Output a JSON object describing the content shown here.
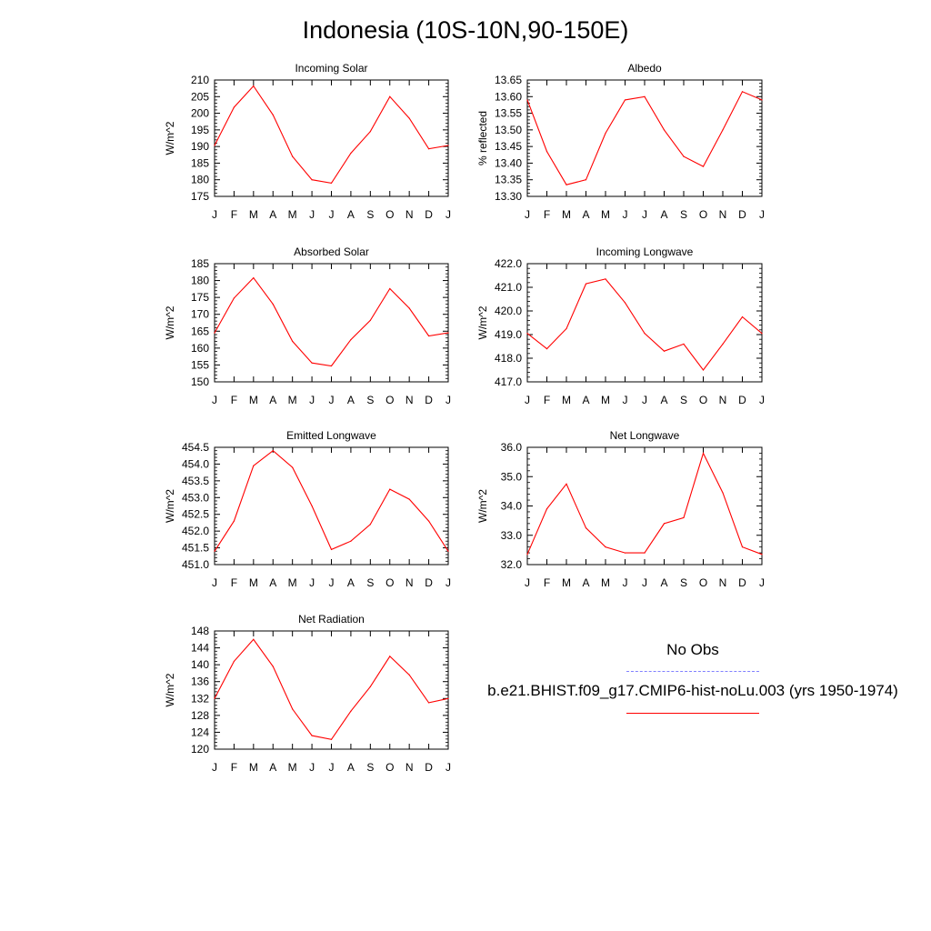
{
  "title": "Indonesia (10S-10N,90-150E)",
  "legend": {
    "obs_label": "No Obs",
    "obs_color": "#8080ff",
    "model_label": "b.e21.BHIST.f09_g17.CMIP6-hist-noLu.003 (yrs 1950-1974)",
    "model_color": "#ff0000"
  },
  "chart_data": [
    {
      "type": "line",
      "title": "Incoming Solar",
      "ylabel": "W/m^2",
      "categories": [
        "J",
        "F",
        "M",
        "A",
        "M",
        "J",
        "J",
        "A",
        "S",
        "O",
        "N",
        "D",
        "J"
      ],
      "ylim": [
        175,
        210
      ],
      "yticks": [
        "175",
        "180",
        "185",
        "190",
        "195",
        "200",
        "205",
        "210"
      ],
      "series": [
        {
          "values": [
            190.3,
            201.8,
            208.2,
            199.5,
            187.0,
            180.0,
            179.0,
            188.0,
            194.5,
            205.0,
            198.5,
            189.3,
            190.3
          ]
        }
      ]
    },
    {
      "type": "line",
      "title": "Albedo",
      "ylabel": "% reflected",
      "categories": [
        "J",
        "F",
        "M",
        "A",
        "M",
        "J",
        "J",
        "A",
        "S",
        "O",
        "N",
        "D",
        "J"
      ],
      "ylim": [
        13.3,
        13.65
      ],
      "yticks": [
        "13.30",
        "13.35",
        "13.40",
        "13.45",
        "13.50",
        "13.55",
        "13.60",
        "13.65"
      ],
      "series": [
        {
          "values": [
            13.59,
            13.435,
            13.335,
            13.35,
            13.49,
            13.59,
            13.6,
            13.5,
            13.42,
            13.39,
            13.5,
            13.615,
            13.59
          ]
        }
      ]
    },
    {
      "type": "line",
      "title": "Absorbed Solar",
      "ylabel": "W/m^2",
      "categories": [
        "J",
        "F",
        "M",
        "A",
        "M",
        "J",
        "J",
        "A",
        "S",
        "O",
        "N",
        "D",
        "J"
      ],
      "ylim": [
        150,
        185
      ],
      "yticks": [
        "150",
        "155",
        "160",
        "165",
        "170",
        "175",
        "180",
        "185"
      ],
      "series": [
        {
          "values": [
            164.5,
            174.8,
            180.8,
            173.0,
            162.0,
            155.6,
            154.7,
            162.5,
            168.2,
            177.6,
            171.8,
            163.6,
            164.5
          ]
        }
      ]
    },
    {
      "type": "line",
      "title": "Incoming Longwave",
      "ylabel": "W/m^2",
      "categories": [
        "J",
        "F",
        "M",
        "A",
        "M",
        "J",
        "J",
        "A",
        "S",
        "O",
        "N",
        "D",
        "J"
      ],
      "ylim": [
        417.0,
        422.0
      ],
      "yticks": [
        "417.0",
        "418.0",
        "419.0",
        "420.0",
        "421.0",
        "422.0"
      ],
      "series": [
        {
          "values": [
            419.05,
            418.4,
            419.25,
            421.15,
            421.35,
            420.35,
            419.05,
            418.3,
            418.6,
            417.5,
            418.6,
            419.75,
            419.05
          ]
        }
      ]
    },
    {
      "type": "line",
      "title": "Emitted Longwave",
      "ylabel": "W/m^2",
      "categories": [
        "J",
        "F",
        "M",
        "A",
        "M",
        "J",
        "J",
        "A",
        "S",
        "O",
        "N",
        "D",
        "J"
      ],
      "ylim": [
        451.0,
        454.5
      ],
      "yticks": [
        "451.0",
        "451.5",
        "452.0",
        "452.5",
        "453.0",
        "453.5",
        "454.0",
        "454.5"
      ],
      "series": [
        {
          "values": [
            451.4,
            452.3,
            453.95,
            454.4,
            453.9,
            452.75,
            451.45,
            451.7,
            452.2,
            453.25,
            452.95,
            452.3,
            451.4
          ]
        }
      ]
    },
    {
      "type": "line",
      "title": "Net Longwave",
      "ylabel": "W/m^2",
      "categories": [
        "J",
        "F",
        "M",
        "A",
        "M",
        "J",
        "J",
        "A",
        "S",
        "O",
        "N",
        "D",
        "J"
      ],
      "ylim": [
        32.0,
        36.0
      ],
      "yticks": [
        "32.0",
        "33.0",
        "34.0",
        "35.0",
        "36.0"
      ],
      "series": [
        {
          "values": [
            32.35,
            33.9,
            34.75,
            33.25,
            32.6,
            32.4,
            32.4,
            33.4,
            33.6,
            35.8,
            34.45,
            32.6,
            32.35
          ]
        }
      ]
    },
    {
      "type": "line",
      "title": "Net Radiation",
      "ylabel": "W/m^2",
      "categories": [
        "J",
        "F",
        "M",
        "A",
        "M",
        "J",
        "J",
        "A",
        "S",
        "O",
        "N",
        "D",
        "J"
      ],
      "ylim": [
        120,
        148
      ],
      "yticks": [
        "120",
        "124",
        "128",
        "132",
        "136",
        "140",
        "144",
        "148"
      ],
      "series": [
        {
          "values": [
            132.0,
            140.8,
            146.0,
            139.6,
            129.5,
            123.2,
            122.3,
            129.0,
            134.8,
            142.0,
            137.6,
            131.0,
            132.0
          ]
        }
      ]
    }
  ]
}
